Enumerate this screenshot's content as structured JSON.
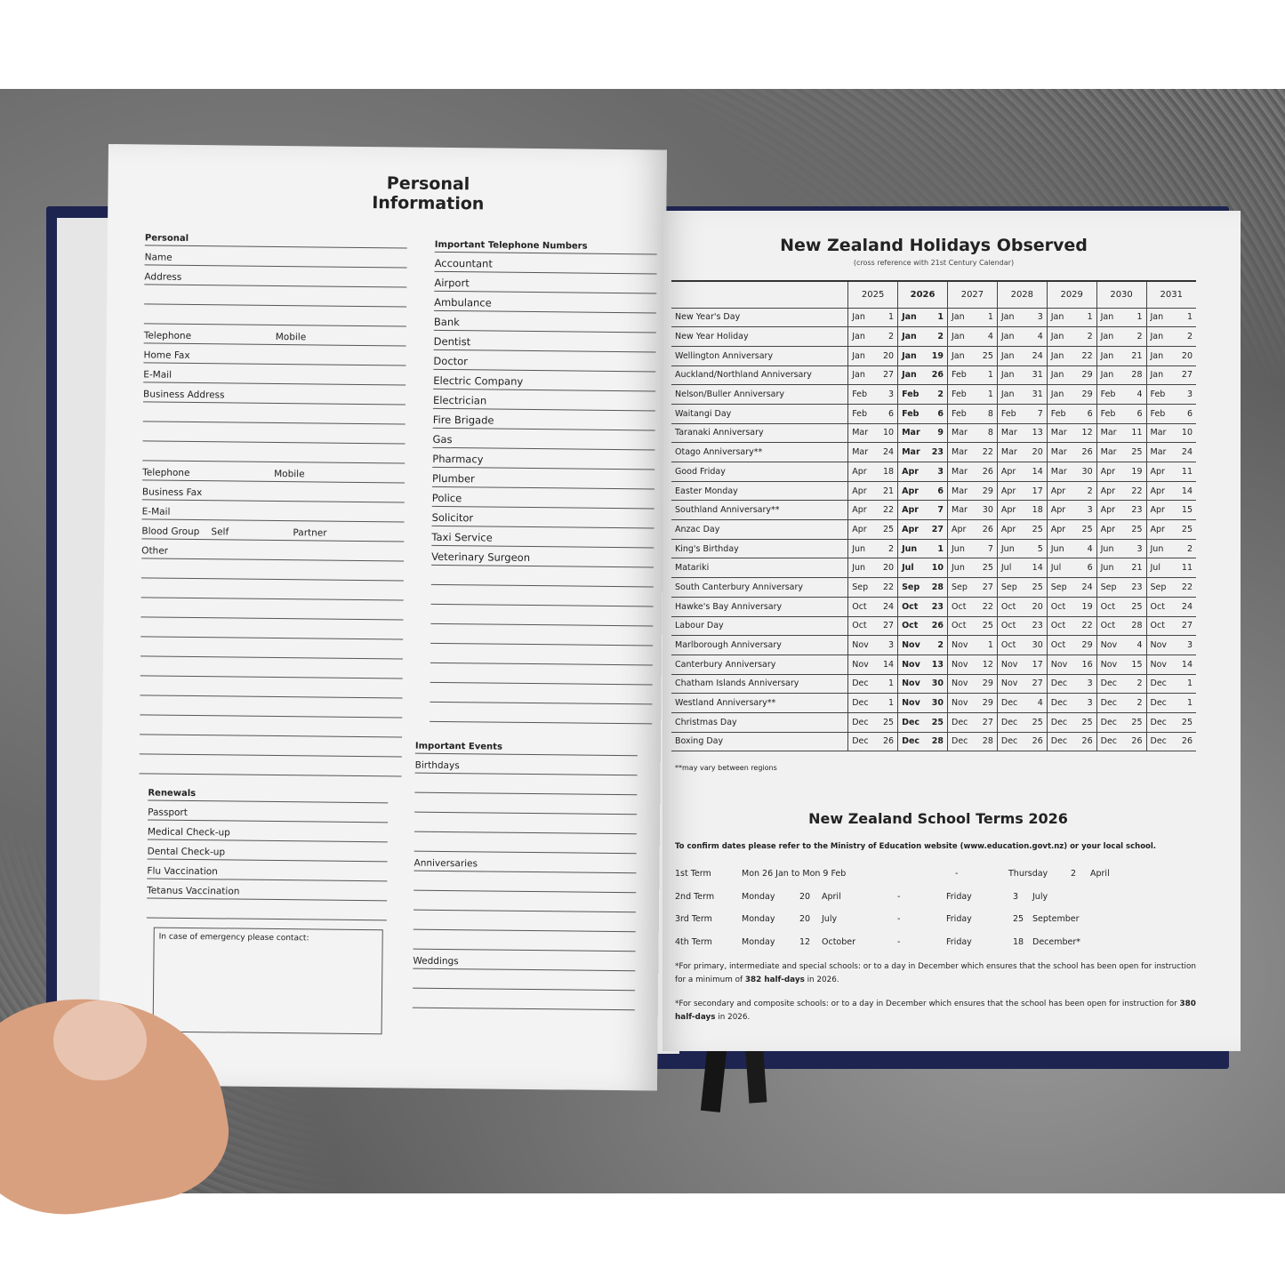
{
  "left_page": {
    "title": "Personal Information",
    "personal": {
      "heading": "Personal",
      "rows": [
        [
          "Name",
          ""
        ],
        [
          "Address",
          ""
        ],
        [
          "",
          ""
        ],
        [
          "",
          ""
        ],
        [
          "Telephone",
          "Mobile"
        ],
        [
          "Home Fax",
          ""
        ],
        [
          "E-Mail",
          ""
        ],
        [
          "Business Address",
          ""
        ],
        [
          "",
          ""
        ],
        [
          "",
          ""
        ],
        [
          "",
          ""
        ],
        [
          "Telephone",
          "Mobile"
        ],
        [
          "Business Fax",
          ""
        ],
        [
          "E-Mail",
          ""
        ],
        [
          "Blood Group",
          "Self",
          "Partner"
        ],
        [
          "Other",
          ""
        ]
      ]
    },
    "renewals": {
      "heading": "Renewals",
      "rows": [
        "Passport",
        "Medical Check-up",
        "Dental Check-up",
        "Flu Vaccination",
        "Tetanus Vaccination"
      ]
    },
    "emergency_label": "In case of emergency please contact:",
    "telephone": {
      "heading": "Important Telephone Numbers",
      "rows": [
        "Accountant",
        "Airport",
        "Ambulance",
        "Bank",
        "Dentist",
        "Doctor",
        "Electric Company",
        "Electrician",
        "Fire Brigade",
        "Gas",
        "Pharmacy",
        "Plumber",
        "Police",
        "Solicitor",
        "Taxi Service",
        "Veterinary Surgeon"
      ]
    },
    "events": {
      "heading": "Important Events",
      "birthdays": "Birthdays",
      "anniversaries": "Anniversaries",
      "weddings": "Weddings"
    }
  },
  "right_page": {
    "title": "New Zealand Holidays Observed",
    "subtitle": "(cross reference with 21st Century Calendar)",
    "years": [
      "2025",
      "2026",
      "2027",
      "2028",
      "2029",
      "2030",
      "2031"
    ],
    "bold_year": "2026",
    "holidays": [
      {
        "name": "New Year's Day",
        "dates": [
          [
            "Jan",
            "1"
          ],
          [
            "Jan",
            "1"
          ],
          [
            "Jan",
            "1"
          ],
          [
            "Jan",
            "3"
          ],
          [
            "Jan",
            "1"
          ],
          [
            "Jan",
            "1"
          ],
          [
            "Jan",
            "1"
          ]
        ]
      },
      {
        "name": "New Year Holiday",
        "dates": [
          [
            "Jan",
            "2"
          ],
          [
            "Jan",
            "2"
          ],
          [
            "Jan",
            "4"
          ],
          [
            "Jan",
            "4"
          ],
          [
            "Jan",
            "2"
          ],
          [
            "Jan",
            "2"
          ],
          [
            "Jan",
            "2"
          ]
        ]
      },
      {
        "name": "Wellington Anniversary",
        "dates": [
          [
            "Jan",
            "20"
          ],
          [
            "Jan",
            "19"
          ],
          [
            "Jan",
            "25"
          ],
          [
            "Jan",
            "24"
          ],
          [
            "Jan",
            "22"
          ],
          [
            "Jan",
            "21"
          ],
          [
            "Jan",
            "20"
          ]
        ]
      },
      {
        "name": "Auckland/Northland Anniversary",
        "dates": [
          [
            "Jan",
            "27"
          ],
          [
            "Jan",
            "26"
          ],
          [
            "Feb",
            "1"
          ],
          [
            "Jan",
            "31"
          ],
          [
            "Jan",
            "29"
          ],
          [
            "Jan",
            "28"
          ],
          [
            "Jan",
            "27"
          ]
        ]
      },
      {
        "name": "Nelson/Buller Anniversary",
        "dates": [
          [
            "Feb",
            "3"
          ],
          [
            "Feb",
            "2"
          ],
          [
            "Feb",
            "1"
          ],
          [
            "Jan",
            "31"
          ],
          [
            "Jan",
            "29"
          ],
          [
            "Feb",
            "4"
          ],
          [
            "Feb",
            "3"
          ]
        ]
      },
      {
        "name": "Waitangi Day",
        "dates": [
          [
            "Feb",
            "6"
          ],
          [
            "Feb",
            "6"
          ],
          [
            "Feb",
            "8"
          ],
          [
            "Feb",
            "7"
          ],
          [
            "Feb",
            "6"
          ],
          [
            "Feb",
            "6"
          ],
          [
            "Feb",
            "6"
          ]
        ]
      },
      {
        "name": "Taranaki Anniversary",
        "dates": [
          [
            "Mar",
            "10"
          ],
          [
            "Mar",
            "9"
          ],
          [
            "Mar",
            "8"
          ],
          [
            "Mar",
            "13"
          ],
          [
            "Mar",
            "12"
          ],
          [
            "Mar",
            "11"
          ],
          [
            "Mar",
            "10"
          ]
        ]
      },
      {
        "name": "Otago Anniversary**",
        "dates": [
          [
            "Mar",
            "24"
          ],
          [
            "Mar",
            "23"
          ],
          [
            "Mar",
            "22"
          ],
          [
            "Mar",
            "20"
          ],
          [
            "Mar",
            "26"
          ],
          [
            "Mar",
            "25"
          ],
          [
            "Mar",
            "24"
          ]
        ]
      },
      {
        "name": "Good Friday",
        "dates": [
          [
            "Apr",
            "18"
          ],
          [
            "Apr",
            "3"
          ],
          [
            "Mar",
            "26"
          ],
          [
            "Apr",
            "14"
          ],
          [
            "Mar",
            "30"
          ],
          [
            "Apr",
            "19"
          ],
          [
            "Apr",
            "11"
          ]
        ]
      },
      {
        "name": "Easter Monday",
        "dates": [
          [
            "Apr",
            "21"
          ],
          [
            "Apr",
            "6"
          ],
          [
            "Mar",
            "29"
          ],
          [
            "Apr",
            "17"
          ],
          [
            "Apr",
            "2"
          ],
          [
            "Apr",
            "22"
          ],
          [
            "Apr",
            "14"
          ]
        ]
      },
      {
        "name": "Southland Anniversary**",
        "dates": [
          [
            "Apr",
            "22"
          ],
          [
            "Apr",
            "7"
          ],
          [
            "Mar",
            "30"
          ],
          [
            "Apr",
            "18"
          ],
          [
            "Apr",
            "3"
          ],
          [
            "Apr",
            "23"
          ],
          [
            "Apr",
            "15"
          ]
        ]
      },
      {
        "name": "Anzac Day",
        "dates": [
          [
            "Apr",
            "25"
          ],
          [
            "Apr",
            "27"
          ],
          [
            "Apr",
            "26"
          ],
          [
            "Apr",
            "25"
          ],
          [
            "Apr",
            "25"
          ],
          [
            "Apr",
            "25"
          ],
          [
            "Apr",
            "25"
          ]
        ]
      },
      {
        "name": "King's Birthday",
        "dates": [
          [
            "Jun",
            "2"
          ],
          [
            "Jun",
            "1"
          ],
          [
            "Jun",
            "7"
          ],
          [
            "Jun",
            "5"
          ],
          [
            "Jun",
            "4"
          ],
          [
            "Jun",
            "3"
          ],
          [
            "Jun",
            "2"
          ]
        ]
      },
      {
        "name": "Matariki",
        "dates": [
          [
            "Jun",
            "20"
          ],
          [
            "Jul",
            "10"
          ],
          [
            "Jun",
            "25"
          ],
          [
            "Jul",
            "14"
          ],
          [
            "Jul",
            "6"
          ],
          [
            "Jun",
            "21"
          ],
          [
            "Jul",
            "11"
          ]
        ]
      },
      {
        "name": "South Canterbury Anniversary",
        "dates": [
          [
            "Sep",
            "22"
          ],
          [
            "Sep",
            "28"
          ],
          [
            "Sep",
            "27"
          ],
          [
            "Sep",
            "25"
          ],
          [
            "Sep",
            "24"
          ],
          [
            "Sep",
            "23"
          ],
          [
            "Sep",
            "22"
          ]
        ]
      },
      {
        "name": "Hawke's Bay Anniversary",
        "dates": [
          [
            "Oct",
            "24"
          ],
          [
            "Oct",
            "23"
          ],
          [
            "Oct",
            "22"
          ],
          [
            "Oct",
            "20"
          ],
          [
            "Oct",
            "19"
          ],
          [
            "Oct",
            "25"
          ],
          [
            "Oct",
            "24"
          ]
        ]
      },
      {
        "name": "Labour Day",
        "dates": [
          [
            "Oct",
            "27"
          ],
          [
            "Oct",
            "26"
          ],
          [
            "Oct",
            "25"
          ],
          [
            "Oct",
            "23"
          ],
          [
            "Oct",
            "22"
          ],
          [
            "Oct",
            "28"
          ],
          [
            "Oct",
            "27"
          ]
        ]
      },
      {
        "name": "Marlborough Anniversary",
        "dates": [
          [
            "Nov",
            "3"
          ],
          [
            "Nov",
            "2"
          ],
          [
            "Nov",
            "1"
          ],
          [
            "Oct",
            "30"
          ],
          [
            "Oct",
            "29"
          ],
          [
            "Nov",
            "4"
          ],
          [
            "Nov",
            "3"
          ]
        ]
      },
      {
        "name": "Canterbury Anniversary",
        "dates": [
          [
            "Nov",
            "14"
          ],
          [
            "Nov",
            "13"
          ],
          [
            "Nov",
            "12"
          ],
          [
            "Nov",
            "17"
          ],
          [
            "Nov",
            "16"
          ],
          [
            "Nov",
            "15"
          ],
          [
            "Nov",
            "14"
          ]
        ]
      },
      {
        "name": "Chatham Islands Anniversary",
        "dates": [
          [
            "Dec",
            "1"
          ],
          [
            "Nov",
            "30"
          ],
          [
            "Nov",
            "29"
          ],
          [
            "Nov",
            "27"
          ],
          [
            "Dec",
            "3"
          ],
          [
            "Dec",
            "2"
          ],
          [
            "Dec",
            "1"
          ]
        ]
      },
      {
        "name": "Westland Anniversary**",
        "dates": [
          [
            "Dec",
            "1"
          ],
          [
            "Nov",
            "30"
          ],
          [
            "Nov",
            "29"
          ],
          [
            "Dec",
            "4"
          ],
          [
            "Dec",
            "3"
          ],
          [
            "Dec",
            "2"
          ],
          [
            "Dec",
            "1"
          ]
        ]
      },
      {
        "name": "Christmas Day",
        "dates": [
          [
            "Dec",
            "25"
          ],
          [
            "Dec",
            "25"
          ],
          [
            "Dec",
            "27"
          ],
          [
            "Dec",
            "25"
          ],
          [
            "Dec",
            "25"
          ],
          [
            "Dec",
            "25"
          ],
          [
            "Dec",
            "25"
          ]
        ]
      },
      {
        "name": "Boxing Day",
        "dates": [
          [
            "Dec",
            "26"
          ],
          [
            "Dec",
            "28"
          ],
          [
            "Dec",
            "28"
          ],
          [
            "Dec",
            "26"
          ],
          [
            "Dec",
            "26"
          ],
          [
            "Dec",
            "26"
          ],
          [
            "Dec",
            "26"
          ]
        ]
      }
    ],
    "footnote": "**may vary between regions",
    "school_title": "New Zealand School Terms 2026",
    "confirm": "To confirm dates please refer to the Ministry of Education website (www.education.govt.nz) or your local school.",
    "terms": [
      [
        "1st Term",
        "Mon 26 Jan to Mon 9 Feb",
        "",
        "-",
        "Thursday",
        "2",
        "April"
      ],
      [
        "2nd Term",
        "Monday",
        "20",
        "April",
        "-",
        "Friday",
        "3",
        "July"
      ],
      [
        "3rd Term",
        "Monday",
        "20",
        "July",
        "-",
        "Friday",
        "25",
        "September"
      ],
      [
        "4th Term",
        "Monday",
        "12",
        "October",
        "-",
        "Friday",
        "18",
        "December*"
      ]
    ],
    "note1_a": "*For primary, intermediate and special schools: or to a day in December which ensures that the school has been open for instruction for a minimum of ",
    "note1_b": "382 half-days",
    "note1_c": " in 2026.",
    "note2_a": "*For secondary and composite schools: or to a day in December which ensures that the school has been open for instruction for ",
    "note2_b": "380 half-days",
    "note2_c": " in 2026."
  }
}
